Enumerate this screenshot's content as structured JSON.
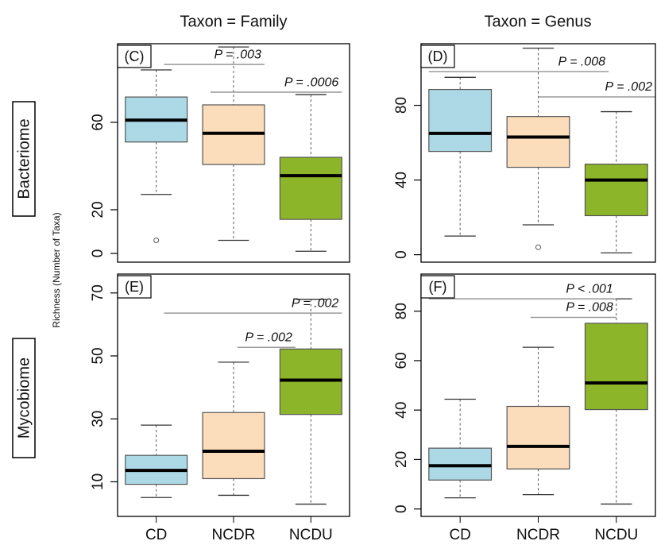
{
  "columns": [
    "Taxon = Family",
    "Taxon = Genus"
  ],
  "rows": [
    "Bacteriome",
    "Mycobiome"
  ],
  "y_label": "Richness (Number of Taxa)",
  "colors": [
    "#add8e6",
    "#fbdcbb",
    "#8db52a"
  ],
  "chart_data": [
    {
      "type": "box",
      "panel": "(C)",
      "ylim": [
        -4,
        96
      ],
      "yticks": [
        0,
        20,
        60
      ],
      "boxes": [
        {
          "min": 27,
          "q1": 51,
          "median": 61,
          "q3": 71.6,
          "max": 84,
          "outliers": [
            6
          ]
        },
        {
          "min": 6,
          "q1": 40.7,
          "median": 55,
          "q3": 68,
          "max": 94.5,
          "outliers": []
        },
        {
          "min": 1,
          "q1": 15.6,
          "median": 35.6,
          "q3": 44,
          "max": 72.7,
          "outliers": []
        }
      ],
      "annotations": [
        {
          "text": "P = .003",
          "y": 86.5
        },
        {
          "text": "P = .0006",
          "y": 73.8
        }
      ]
    },
    {
      "type": "box",
      "panel": "(D)",
      "ylim": [
        -4,
        113
      ],
      "yticks": [
        0,
        40,
        80
      ],
      "boxes": [
        {
          "min": 10,
          "q1": 55.3,
          "median": 65,
          "q3": 88.5,
          "max": 95,
          "outliers": []
        },
        {
          "min": 16,
          "q1": 46.8,
          "median": 63,
          "q3": 74,
          "max": 110.6,
          "outliers": [
            4
          ]
        },
        {
          "min": 1,
          "q1": 20.9,
          "median": 40,
          "q3": 48.5,
          "max": 76.6,
          "outliers": []
        }
      ],
      "annotations": [
        {
          "text": "P = .008",
          "y": 98
        },
        {
          "text": "P = .002",
          "y": 84.5
        }
      ]
    },
    {
      "type": "box",
      "panel": "(E)",
      "ylim": [
        -1,
        76
      ],
      "yticks": [
        10,
        30,
        50,
        70
      ],
      "categories": [
        "CD",
        "NCDR",
        "NCDU"
      ],
      "boxes": [
        {
          "min": 5,
          "q1": 9.2,
          "median": 13.6,
          "q3": 18.4,
          "max": 28,
          "outliers": []
        },
        {
          "min": 5.7,
          "q1": 11,
          "median": 19.7,
          "q3": 32,
          "max": 48,
          "outliers": []
        },
        {
          "min": 2.9,
          "q1": 31.4,
          "median": 42.3,
          "q3": 52.2,
          "max": 68,
          "outliers": []
        }
      ],
      "annotations": [
        {
          "text": "P = .002",
          "y": 63.6
        },
        {
          "text": "P = .002",
          "y": 52.7
        }
      ]
    },
    {
      "type": "box",
      "panel": "(F)",
      "ylim": [
        -3,
        95
      ],
      "yticks": [
        0,
        20,
        40,
        60,
        80
      ],
      "categories": [
        "CD",
        "NCDR",
        "NCDU"
      ],
      "boxes": [
        {
          "min": 4.5,
          "q1": 11.7,
          "median": 17.5,
          "q3": 24.6,
          "max": 44.4,
          "outliers": []
        },
        {
          "min": 5.8,
          "q1": 16.2,
          "median": 25.3,
          "q3": 41.5,
          "max": 65.4,
          "outliers": []
        },
        {
          "min": 2,
          "q1": 40.2,
          "median": 51,
          "q3": 75.1,
          "max": 85,
          "outliers": []
        }
      ],
      "annotations": [
        {
          "text": "P < .001",
          "y": 85
        },
        {
          "text": "P = .008",
          "y": 77.5
        }
      ]
    }
  ]
}
